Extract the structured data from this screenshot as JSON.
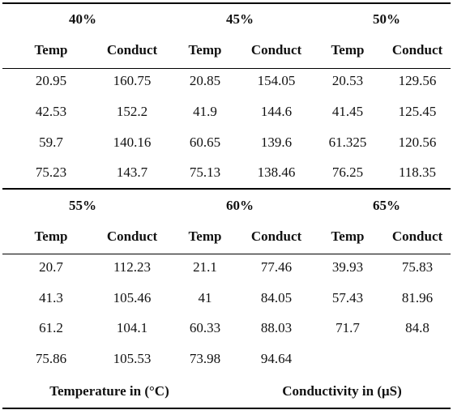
{
  "blocks": [
    {
      "groups": [
        {
          "concentration": "40%",
          "col_temp": "Temp",
          "col_conduct": "Conduct",
          "rows": [
            [
              "20.95",
              "160.75"
            ],
            [
              "42.53",
              "152.2"
            ],
            [
              "59.7",
              "140.16"
            ],
            [
              "75.23",
              "143.7"
            ]
          ]
        },
        {
          "concentration": "45%",
          "col_temp": "Temp",
          "col_conduct": "Conduct",
          "rows": [
            [
              "20.85",
              "154.05"
            ],
            [
              "41.9",
              "144.6"
            ],
            [
              "60.65",
              "139.6"
            ],
            [
              "75.13",
              "138.46"
            ]
          ]
        },
        {
          "concentration": "50%",
          "col_temp": "Temp",
          "col_conduct": "Conduct",
          "rows": [
            [
              "20.53",
              "129.56"
            ],
            [
              "41.45",
              "125.45"
            ],
            [
              "61.325",
              "120.56"
            ],
            [
              "76.25",
              "118.35"
            ]
          ]
        }
      ]
    },
    {
      "groups": [
        {
          "concentration": "55%",
          "col_temp": "Temp",
          "col_conduct": "Conduct",
          "rows": [
            [
              "20.7",
              "112.23"
            ],
            [
              "41.3",
              "105.46"
            ],
            [
              "61.2",
              "104.1"
            ],
            [
              "75.86",
              "105.53"
            ]
          ]
        },
        {
          "concentration": "60%",
          "col_temp": "Temp",
          "col_conduct": "Conduct",
          "rows": [
            [
              "21.1",
              "77.46"
            ],
            [
              "41",
              "84.05"
            ],
            [
              "60.33",
              "88.03"
            ],
            [
              "73.98",
              "94.64"
            ]
          ]
        },
        {
          "concentration": "65%",
          "col_temp": "Temp",
          "col_conduct": "Conduct",
          "rows": [
            [
              "39.93",
              "75.83"
            ],
            [
              "57.43",
              "81.96"
            ],
            [
              "71.7",
              "84.8"
            ],
            [
              "",
              ""
            ]
          ]
        }
      ]
    }
  ],
  "footer": {
    "temperature_label": "Temperature in (°C)",
    "conductivity_label": "Conductivity in (μS)"
  }
}
